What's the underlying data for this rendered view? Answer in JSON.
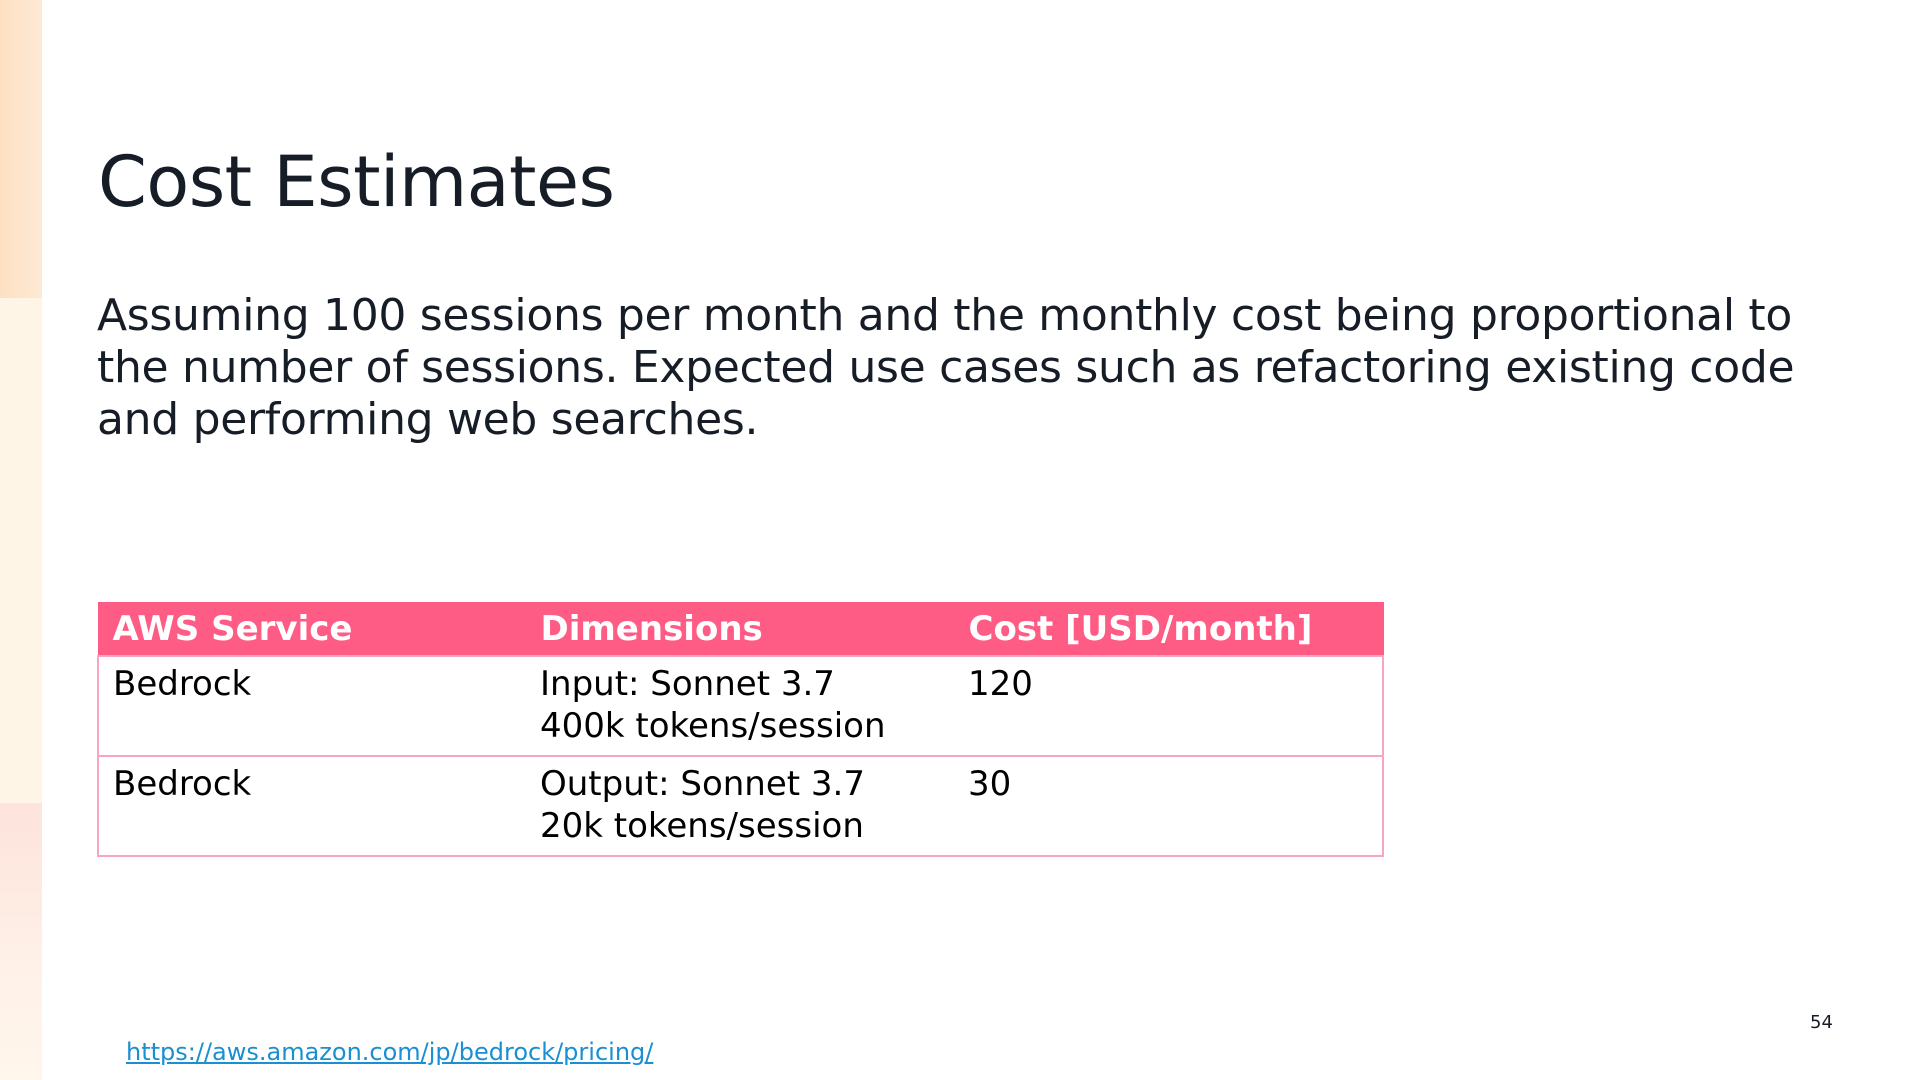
{
  "slide": {
    "title": "Cost Estimates",
    "body": "Assuming 100 sessions per month and the monthly cost being proportional to the number of sessions. Expected use cases such as refactoring existing code and performing web searches.",
    "page_number": "54",
    "source_link": "https://aws.amazon.com/jp/bedrock/pricing/"
  },
  "table": {
    "headers": [
      "AWS Service",
      "Dimensions",
      "Cost [USD/month]"
    ],
    "rows": [
      {
        "service": "Bedrock",
        "dimension_line1": "Input: Sonnet 3.7",
        "dimension_line2": "400k tokens/session",
        "cost": "120"
      },
      {
        "service": "Bedrock",
        "dimension_line1": "Output: Sonnet 3.7",
        "dimension_line2": "20k tokens/session",
        "cost": "30"
      }
    ]
  },
  "colors": {
    "header_bg": "#ff5c85",
    "header_text": "#ffffff",
    "border": "#f7a6bd",
    "link": "#1a8fd1"
  }
}
